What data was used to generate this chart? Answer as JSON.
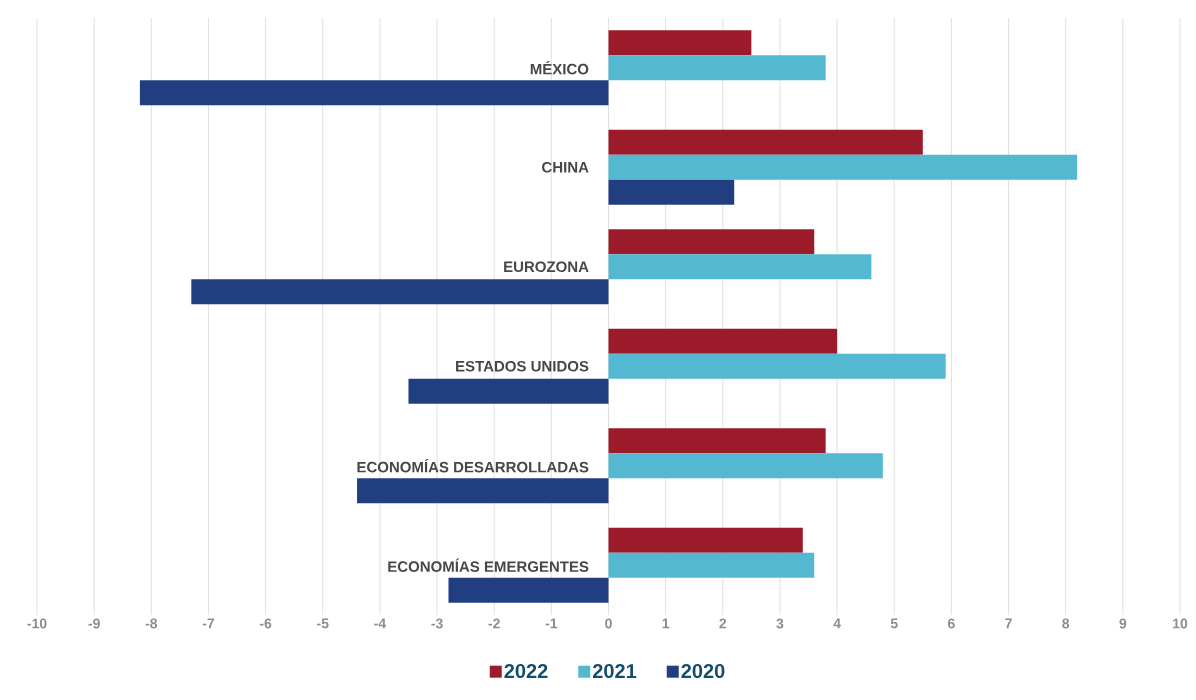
{
  "chart_data": {
    "type": "bar",
    "orientation": "horizontal",
    "categories": [
      "MÉXICO",
      "CHINA",
      "EUROZONA",
      "ESTADOS UNIDOS",
      "ECONOMÍAS DESARROLLADAS",
      "ECONOMÍAS EMERGENTES"
    ],
    "series": [
      {
        "name": "2022",
        "color": "#9b1b2a",
        "values": [
          2.5,
          5.5,
          3.6,
          4.0,
          3.8,
          3.4
        ]
      },
      {
        "name": "2021",
        "color": "#54b8d0",
        "values": [
          3.8,
          8.2,
          4.6,
          5.9,
          4.8,
          3.6
        ]
      },
      {
        "name": "2020",
        "color": "#213f80",
        "values": [
          -8.2,
          2.2,
          -7.3,
          -3.5,
          -4.4,
          -2.8
        ]
      }
    ],
    "xlim": [
      -10,
      10
    ],
    "xticks": [
      -10,
      -9,
      -8,
      -7,
      -6,
      -5,
      -4,
      -3,
      -2,
      -1,
      0,
      1,
      2,
      3,
      4,
      5,
      6,
      7,
      8,
      9,
      10
    ],
    "grid": "x",
    "legend": "bottom"
  }
}
